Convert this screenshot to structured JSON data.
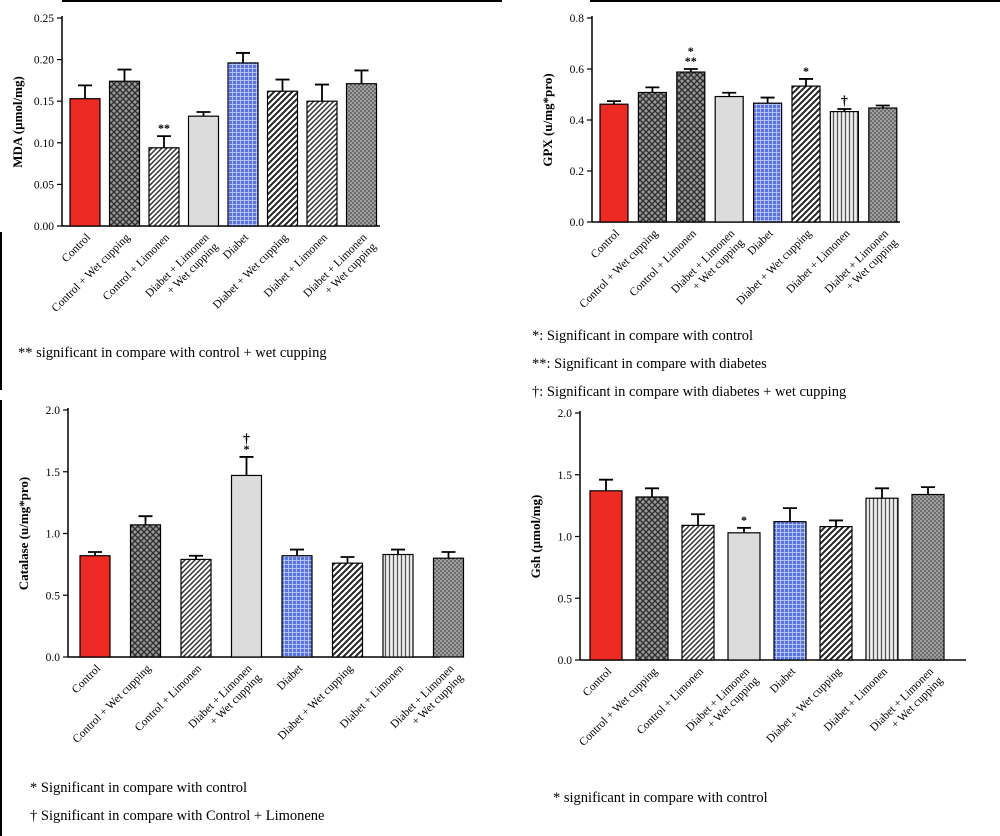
{
  "chart_data": [
    {
      "id": "mda",
      "type": "bar",
      "ylabel": "MDA (µmol/mg)",
      "ylim": [
        0,
        0.25
      ],
      "yticks": [
        "0.00",
        "0.05",
        "0.10",
        "0.15",
        "0.20",
        "0.25"
      ],
      "categories": [
        "Control",
        "Control + Wet cupping",
        "Control + Limonen",
        "Diabet + Limonen\n+ Wet cupping",
        "Diabet",
        "Diabet + Wet cupping",
        "Diabet + Limonen",
        "Diabet + Limonen\n+ Wet cupping"
      ],
      "values": [
        0.153,
        0.174,
        0.094,
        0.132,
        0.196,
        0.162,
        0.15,
        0.171
      ],
      "errors": [
        0.016,
        0.014,
        0.014,
        0.005,
        0.012,
        0.014,
        0.02,
        0.016
      ],
      "patterns": [
        "solid-red",
        "crosshatch",
        "diag-dense",
        "light-gray",
        "blue-grid",
        "diag-wide",
        "diag-dense",
        "dots-gray"
      ],
      "annotations": [
        "",
        "",
        "**",
        "",
        "",
        "",
        "",
        ""
      ],
      "notes": [
        "** significant in compare with control  + wet cupping"
      ]
    },
    {
      "id": "gpx",
      "type": "bar",
      "ylabel": "GPX (u/mg*pro)",
      "ylim": [
        0,
        0.8
      ],
      "yticks": [
        "0.0",
        "0.2",
        "0.4",
        "0.6",
        "0.8"
      ],
      "categories": [
        "Control",
        "Control + Wet cupping",
        "Control + Limonen",
        "Diabet + Limonen\n+ Wet cupping",
        "Diabet",
        "Diabet + Wet cupping",
        "Diabet + Limonen",
        "Diabet + Limonen\n+ Wet cupping"
      ],
      "values": [
        0.462,
        0.508,
        0.588,
        0.492,
        0.466,
        0.533,
        0.433,
        0.447
      ],
      "errors": [
        0.012,
        0.02,
        0.012,
        0.015,
        0.022,
        0.028,
        0.01,
        0.01
      ],
      "patterns": [
        "solid-red",
        "crosshatch",
        "crosshatch",
        "light-gray",
        "blue-grid",
        "diag-wide",
        "vlines",
        "dots-gray"
      ],
      "annotations": [
        "",
        "",
        "*\n**",
        "",
        "",
        "*",
        "†",
        ""
      ],
      "notes": [
        "*: Significant in compare with control",
        "**: Significant in compare with diabetes",
        "†: Significant in compare with diabetes + wet cupping"
      ]
    },
    {
      "id": "catalase",
      "type": "bar",
      "ylabel": "Catalase (u/mg*pro)",
      "ylim": [
        0,
        2.0
      ],
      "yticks": [
        "0.0",
        "0.5",
        "1.0",
        "1.5",
        "2.0"
      ],
      "categories": [
        "Control",
        "Control + Wet cupping",
        "Control + Limonen",
        "Diabet + Limonen\n+ Wet cupping",
        "Diabet",
        "Diabet + Wet cupping",
        "Diabet + Limonen",
        "Diabet + Limonen\n+ Wet cupping"
      ],
      "values": [
        0.82,
        1.07,
        0.79,
        1.47,
        0.82,
        0.76,
        0.83,
        0.8
      ],
      "errors": [
        0.03,
        0.07,
        0.03,
        0.15,
        0.05,
        0.05,
        0.04,
        0.05
      ],
      "patterns": [
        "solid-red",
        "crosshatch",
        "diag-dense",
        "light-gray",
        "blue-grid",
        "diag-wide",
        "vlines",
        "dots-gray"
      ],
      "annotations": [
        "",
        "",
        "",
        "†\n*",
        "",
        "",
        "",
        ""
      ],
      "notes": [
        "* Significant in compare with control",
        "† Significant in compare with Control + Limonene"
      ]
    },
    {
      "id": "gsh",
      "type": "bar",
      "ylabel": "Gsh (µmol/mg)",
      "ylim": [
        0,
        2.0
      ],
      "yticks": [
        "0.0",
        "0.5",
        "1.0",
        "1.5",
        "2.0"
      ],
      "categories": [
        "Control",
        "Control + Wet cupping",
        "Control + Limonen",
        "Diabet + Limonen\n+ Wet cupping",
        "Diabet",
        "Diabet + Wet cupping",
        "Diabet + Limonen",
        "Diabet + Limonen\n+ Wet cupping"
      ],
      "values": [
        1.37,
        1.32,
        1.09,
        1.03,
        1.12,
        1.08,
        1.31,
        1.34
      ],
      "errors": [
        0.09,
        0.07,
        0.09,
        0.04,
        0.11,
        0.05,
        0.08,
        0.06
      ],
      "patterns": [
        "solid-red",
        "crosshatch",
        "diag-dense",
        "light-gray",
        "blue-grid",
        "diag-wide",
        "vlines",
        "dots-gray"
      ],
      "annotations": [
        "",
        "",
        "",
        "*",
        "",
        "",
        "",
        ""
      ],
      "notes": [
        "* significant in compare with control"
      ]
    }
  ]
}
